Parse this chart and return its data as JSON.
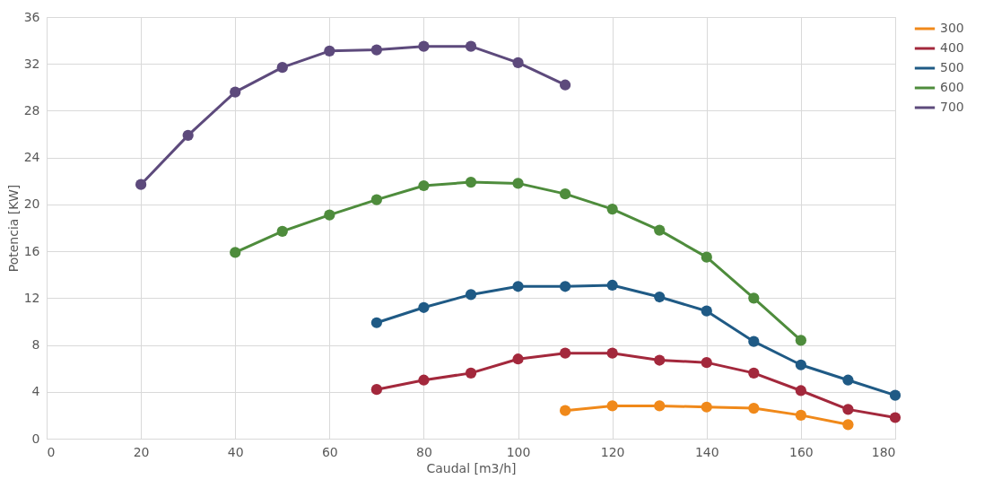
{
  "chart_data": {
    "type": "line",
    "xlabel": "Caudal [m3/h]",
    "ylabel": "Potencia [KW]",
    "xlim": [
      0,
      180
    ],
    "xticks": [
      0,
      20,
      40,
      60,
      80,
      100,
      120,
      140,
      160,
      180
    ],
    "ylim": [
      0,
      36
    ],
    "yticks": [
      0,
      4,
      8,
      12,
      16,
      20,
      24,
      28,
      32,
      36
    ],
    "grid": true,
    "legend": "right",
    "marker": "circle",
    "line_style": "solid",
    "series": [
      {
        "name": "300",
        "color": "#f0891a",
        "x": [
          110,
          120,
          130,
          140,
          150,
          160,
          170
        ],
        "values": [
          2.4,
          2.8,
          2.8,
          2.7,
          2.6,
          2.0,
          1.2
        ]
      },
      {
        "name": "400",
        "color": "#a3283c",
        "x": [
          70,
          80,
          90,
          100,
          110,
          120,
          130,
          140,
          150,
          160,
          170,
          180
        ],
        "values": [
          4.2,
          5.0,
          5.6,
          6.8,
          7.3,
          7.3,
          6.7,
          6.5,
          5.6,
          4.1,
          2.5,
          1.8
        ]
      },
      {
        "name": "500",
        "color": "#1f5a85",
        "x": [
          70,
          80,
          90,
          100,
          110,
          120,
          130,
          140,
          150,
          160,
          170,
          180
        ],
        "values": [
          9.9,
          11.2,
          12.3,
          13.0,
          13.0,
          13.1,
          12.1,
          10.9,
          8.3,
          6.3,
          5.0,
          3.7
        ]
      },
      {
        "name": "600",
        "color": "#4e8c3c",
        "x": [
          40,
          50,
          60,
          70,
          80,
          90,
          100,
          110,
          120,
          130,
          140,
          150,
          160
        ],
        "values": [
          15.9,
          17.7,
          19.1,
          20.4,
          21.6,
          21.9,
          21.8,
          20.9,
          19.6,
          17.8,
          15.5,
          12.0,
          8.4
        ]
      },
      {
        "name": "700",
        "color": "#5d4a7c",
        "x": [
          20,
          30,
          40,
          50,
          60,
          70,
          80,
          90,
          100,
          110
        ],
        "values": [
          21.7,
          25.9,
          29.6,
          31.7,
          33.1,
          33.2,
          33.5,
          33.5,
          32.1,
          30.2
        ]
      }
    ]
  }
}
